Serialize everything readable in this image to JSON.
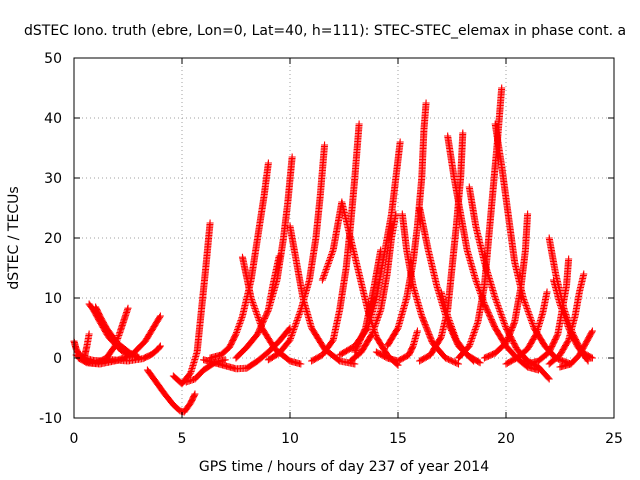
{
  "chart_data": {
    "type": "scatter",
    "title": "dSTEC Iono. truth (ebre, Lon=0, Lat=40, h=111): STEC-STEC_elemax in phase cont. a",
    "xlabel": "GPS time / hours of day 237 of year 2014",
    "ylabel": "dSTEC  / TECUs",
    "xlim": [
      0,
      25
    ],
    "ylim": [
      -10,
      50
    ],
    "xticks": [
      0,
      5,
      10,
      15,
      20,
      25
    ],
    "yticks": [
      -10,
      0,
      10,
      20,
      30,
      40,
      50
    ],
    "grid": true,
    "marker": "+",
    "color": "#ff0000",
    "series": [
      {
        "values": [
          [
            0.0,
            2.8
          ],
          [
            0.1,
            1.5
          ],
          [
            0.25,
            0.5
          ],
          [
            0.5,
            0.0
          ],
          [
            0.9,
            -0.4
          ],
          [
            1.3,
            -0.5
          ]
        ]
      },
      {
        "values": [
          [
            0.5,
            0.4
          ],
          [
            0.6,
            2.0
          ],
          [
            0.7,
            4.0
          ]
        ]
      },
      {
        "values": [
          [
            0.7,
            9.0
          ],
          [
            0.9,
            8.0
          ],
          [
            1.2,
            6.0
          ],
          [
            1.6,
            3.5
          ],
          [
            2.2,
            1.2
          ],
          [
            2.7,
            0.2
          ]
        ]
      },
      {
        "values": [
          [
            1.0,
            8.5
          ],
          [
            1.2,
            7.0
          ],
          [
            1.5,
            5.0
          ],
          [
            2.0,
            2.5
          ],
          [
            2.6,
            0.8
          ],
          [
            3.0,
            0.1
          ]
        ]
      },
      {
        "values": [
          [
            0.1,
            0.5
          ],
          [
            0.5,
            -0.5
          ],
          [
            1.0,
            -0.9
          ],
          [
            1.5,
            0.0
          ],
          [
            1.9,
            2.0
          ],
          [
            2.1,
            4.0
          ],
          [
            2.5,
            8.3
          ]
        ]
      },
      {
        "values": [
          [
            0.2,
            0.0
          ],
          [
            0.6,
            -0.8
          ],
          [
            1.2,
            -1.0
          ],
          [
            2.0,
            -0.4
          ],
          [
            2.7,
            0.6
          ],
          [
            3.3,
            2.8
          ],
          [
            4.0,
            7.0
          ]
        ]
      },
      {
        "values": [
          [
            1.5,
            -0.2
          ],
          [
            2.5,
            -0.5
          ],
          [
            3.2,
            -0.1
          ],
          [
            3.6,
            0.6
          ],
          [
            3.9,
            1.5
          ],
          [
            4.0,
            2.0
          ]
        ]
      },
      {
        "values": [
          [
            3.4,
            -2.0
          ],
          [
            3.8,
            -4.0
          ],
          [
            4.2,
            -6.0
          ],
          [
            4.6,
            -7.8
          ],
          [
            4.9,
            -8.8
          ],
          [
            5.1,
            -9.0
          ],
          [
            5.4,
            -7.5
          ],
          [
            5.6,
            -6.0
          ]
        ]
      },
      {
        "values": [
          [
            4.6,
            -3.0
          ],
          [
            5.0,
            -4.3
          ],
          [
            5.4,
            -2.5
          ],
          [
            5.7,
            1.0
          ],
          [
            5.9,
            8.0
          ],
          [
            6.1,
            15.0
          ],
          [
            6.3,
            22.5
          ]
        ]
      },
      {
        "values": [
          [
            5.2,
            -4.0
          ],
          [
            5.6,
            -3.5
          ],
          [
            6.0,
            -2.0
          ],
          [
            6.5,
            -0.8
          ],
          [
            7.0,
            -0.3
          ]
        ]
      },
      {
        "values": [
          [
            6.0,
            -0.3
          ],
          [
            6.5,
            -0.8
          ],
          [
            7.0,
            -1.3
          ],
          [
            7.5,
            -1.8
          ],
          [
            8.0,
            -1.7
          ],
          [
            8.5,
            -0.5
          ],
          [
            9.0,
            1.0
          ],
          [
            9.5,
            2.8
          ],
          [
            10.0,
            5.0
          ]
        ]
      },
      {
        "values": [
          [
            6.3,
            0.0
          ],
          [
            6.8,
            0.5
          ],
          [
            7.2,
            1.8
          ],
          [
            7.5,
            4.0
          ],
          [
            7.8,
            7.0
          ],
          [
            8.2,
            13.0
          ],
          [
            8.5,
            20.0
          ],
          [
            8.8,
            27.0
          ],
          [
            9.0,
            32.5
          ]
        ]
      },
      {
        "values": [
          [
            7.5,
            0.0
          ],
          [
            8.0,
            1.8
          ],
          [
            8.5,
            4.0
          ],
          [
            9.0,
            8.0
          ],
          [
            9.4,
            13.0
          ],
          [
            9.7,
            20.0
          ],
          [
            9.9,
            26.0
          ],
          [
            10.1,
            33.5
          ]
        ]
      },
      {
        "values": [
          [
            7.8,
            16.8
          ],
          [
            8.2,
            10.0
          ],
          [
            8.7,
            5.0
          ],
          [
            9.3,
            1.5
          ],
          [
            10.0,
            -0.5
          ],
          [
            10.5,
            -1.0
          ]
        ]
      },
      {
        "values": [
          [
            9.0,
            -0.3
          ],
          [
            9.5,
            0.8
          ],
          [
            10.0,
            3.0
          ],
          [
            10.5,
            8.0
          ],
          [
            10.9,
            13.0
          ],
          [
            11.2,
            20.0
          ],
          [
            11.4,
            27.0
          ],
          [
            11.6,
            35.5
          ]
        ]
      },
      {
        "values": [
          [
            9.5,
            17.0
          ],
          [
            9.2,
            12.0
          ],
          [
            9.0,
            8.0
          ]
        ]
      },
      {
        "values": [
          [
            10.0,
            22.0
          ],
          [
            10.3,
            16.0
          ],
          [
            10.6,
            10.0
          ],
          [
            11.0,
            5.0
          ],
          [
            11.6,
            1.5
          ],
          [
            12.3,
            -0.5
          ],
          [
            13.0,
            -1.0
          ]
        ]
      },
      {
        "values": [
          [
            11.0,
            -0.5
          ],
          [
            11.5,
            0.5
          ],
          [
            12.0,
            3.0
          ],
          [
            12.3,
            8.0
          ],
          [
            12.6,
            15.0
          ],
          [
            12.8,
            22.0
          ],
          [
            13.0,
            30.0
          ],
          [
            13.2,
            39.0
          ]
        ]
      },
      {
        "values": [
          [
            11.5,
            13.0
          ],
          [
            12.0,
            18.0
          ],
          [
            12.4,
            26.0
          ],
          [
            12.8,
            20.0
          ],
          [
            13.2,
            14.0
          ],
          [
            13.6,
            8.0
          ],
          [
            14.0,
            3.5
          ],
          [
            14.5,
            0.5
          ],
          [
            15.0,
            -1.2
          ]
        ]
      },
      {
        "values": [
          [
            12.8,
            -0.5
          ],
          [
            13.3,
            1.0
          ],
          [
            13.8,
            4.0
          ],
          [
            14.2,
            8.0
          ],
          [
            14.5,
            14.0
          ],
          [
            14.7,
            20.0
          ],
          [
            14.9,
            24.0
          ]
        ]
      },
      {
        "values": [
          [
            12.3,
            0.5
          ],
          [
            13.0,
            2.0
          ],
          [
            13.6,
            5.0
          ],
          [
            14.0,
            10.0
          ],
          [
            14.4,
            18.0
          ],
          [
            14.7,
            24.0
          ],
          [
            14.9,
            30.0
          ],
          [
            15.1,
            36.0
          ]
        ]
      },
      {
        "values": [
          [
            14.2,
            18.0
          ],
          [
            13.9,
            12.0
          ],
          [
            13.5,
            5.0
          ],
          [
            13.0,
            1.0
          ]
        ]
      },
      {
        "values": [
          [
            14.0,
            1.0
          ],
          [
            14.5,
            0.0
          ],
          [
            15.0,
            -0.5
          ],
          [
            15.5,
            0.5
          ],
          [
            15.7,
            2.0
          ],
          [
            15.9,
            4.5
          ]
        ]
      },
      {
        "values": [
          [
            15.2,
            24.0
          ],
          [
            15.4,
            18.0
          ],
          [
            15.7,
            12.0
          ],
          [
            16.1,
            7.0
          ],
          [
            16.6,
            2.5
          ],
          [
            17.2,
            0.0
          ],
          [
            17.8,
            -1.0
          ]
        ]
      },
      {
        "values": [
          [
            14.5,
            2.0
          ],
          [
            15.0,
            5.0
          ],
          [
            15.4,
            10.0
          ],
          [
            15.7,
            16.0
          ],
          [
            15.9,
            22.0
          ],
          [
            16.1,
            30.0
          ],
          [
            16.2,
            38.0
          ],
          [
            16.3,
            42.5
          ]
        ]
      },
      {
        "values": [
          [
            16.0,
            25.0
          ],
          [
            16.4,
            18.0
          ],
          [
            16.8,
            12.0
          ],
          [
            17.3,
            6.0
          ],
          [
            17.8,
            2.0
          ],
          [
            18.5,
            -0.5
          ]
        ]
      },
      {
        "values": [
          [
            16.0,
            -0.5
          ],
          [
            16.5,
            0.5
          ],
          [
            17.0,
            3.5
          ],
          [
            17.3,
            8.0
          ],
          [
            17.5,
            15.0
          ],
          [
            17.7,
            22.0
          ],
          [
            17.9,
            30.0
          ],
          [
            18.0,
            37.5
          ]
        ]
      },
      {
        "values": [
          [
            17.3,
            37.0
          ],
          [
            17.6,
            30.0
          ],
          [
            17.9,
            24.0
          ],
          [
            18.2,
            18.0
          ],
          [
            18.6,
            13.0
          ],
          [
            19.0,
            9.0
          ],
          [
            19.5,
            5.0
          ],
          [
            20.0,
            2.0
          ],
          [
            20.5,
            0.0
          ],
          [
            21.0,
            -1.5
          ],
          [
            21.5,
            -2.0
          ]
        ]
      },
      {
        "values": [
          [
            17.0,
            11.0
          ],
          [
            17.3,
            7.0
          ],
          [
            17.7,
            3.0
          ],
          [
            18.2,
            0.5
          ],
          [
            18.8,
            -0.8
          ]
        ]
      },
      {
        "values": [
          [
            18.3,
            28.5
          ],
          [
            18.6,
            22.0
          ],
          [
            19.0,
            16.0
          ],
          [
            19.5,
            10.0
          ],
          [
            20.0,
            5.0
          ],
          [
            20.5,
            1.5
          ],
          [
            21.0,
            -0.5
          ],
          [
            21.5,
            -1.5
          ],
          [
            22.0,
            -3.5
          ]
        ]
      },
      {
        "values": [
          [
            17.8,
            0.0
          ],
          [
            18.3,
            2.0
          ],
          [
            18.7,
            6.0
          ],
          [
            19.0,
            12.0
          ],
          [
            19.2,
            20.0
          ],
          [
            19.4,
            28.0
          ],
          [
            19.6,
            36.0
          ],
          [
            19.8,
            45.0
          ]
        ]
      },
      {
        "values": [
          [
            19.5,
            39.0
          ],
          [
            19.8,
            32.0
          ],
          [
            20.1,
            24.0
          ],
          [
            20.4,
            16.0
          ],
          [
            20.8,
            10.0
          ],
          [
            21.3,
            5.0
          ],
          [
            21.8,
            2.0
          ],
          [
            22.3,
            0.0
          ],
          [
            23.0,
            -1.0
          ]
        ]
      },
      {
        "values": [
          [
            19.0,
            0.0
          ],
          [
            19.5,
            0.8
          ],
          [
            20.0,
            2.5
          ],
          [
            20.4,
            6.0
          ],
          [
            20.7,
            12.0
          ],
          [
            20.9,
            18.0
          ],
          [
            21.0,
            24.0
          ]
        ]
      },
      {
        "values": [
          [
            20.0,
            -1.0
          ],
          [
            20.5,
            0.0
          ],
          [
            21.0,
            1.5
          ],
          [
            21.4,
            4.0
          ],
          [
            21.7,
            7.5
          ],
          [
            21.9,
            11.0
          ]
        ]
      },
      {
        "values": [
          [
            21.0,
            -1.0
          ],
          [
            21.5,
            -0.5
          ],
          [
            22.0,
            1.0
          ],
          [
            22.4,
            4.0
          ],
          [
            22.6,
            8.0
          ],
          [
            22.8,
            12.0
          ],
          [
            22.9,
            16.5
          ]
        ]
      },
      {
        "values": [
          [
            22.0,
            20.0
          ],
          [
            22.3,
            14.0
          ],
          [
            22.7,
            8.0
          ],
          [
            23.1,
            4.0
          ],
          [
            23.5,
            1.0
          ],
          [
            24.0,
            0.0
          ]
        ]
      },
      {
        "values": [
          [
            22.2,
            13.0
          ],
          [
            22.5,
            9.0
          ],
          [
            22.9,
            5.0
          ],
          [
            23.3,
            2.0
          ],
          [
            23.8,
            -0.5
          ]
        ]
      },
      {
        "values": [
          [
            22.0,
            -1.0
          ],
          [
            22.5,
            0.5
          ],
          [
            22.9,
            3.0
          ],
          [
            23.2,
            7.0
          ],
          [
            23.4,
            11.0
          ],
          [
            23.6,
            14.0
          ]
        ]
      },
      {
        "values": [
          [
            22.5,
            -1.5
          ],
          [
            23.0,
            -1.0
          ],
          [
            23.4,
            0.5
          ],
          [
            23.7,
            2.5
          ],
          [
            24.0,
            4.5
          ]
        ]
      }
    ]
  }
}
